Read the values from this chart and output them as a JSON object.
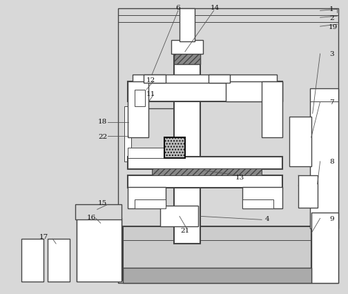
{
  "fig_width": 5.04,
  "fig_height": 4.27,
  "dpi": 100,
  "bg": "#d8d8d8",
  "lc": "#444444",
  "lw_thin": 0.7,
  "lw_med": 1.0,
  "lw_thick": 1.5,
  "label_fs": 7.5
}
